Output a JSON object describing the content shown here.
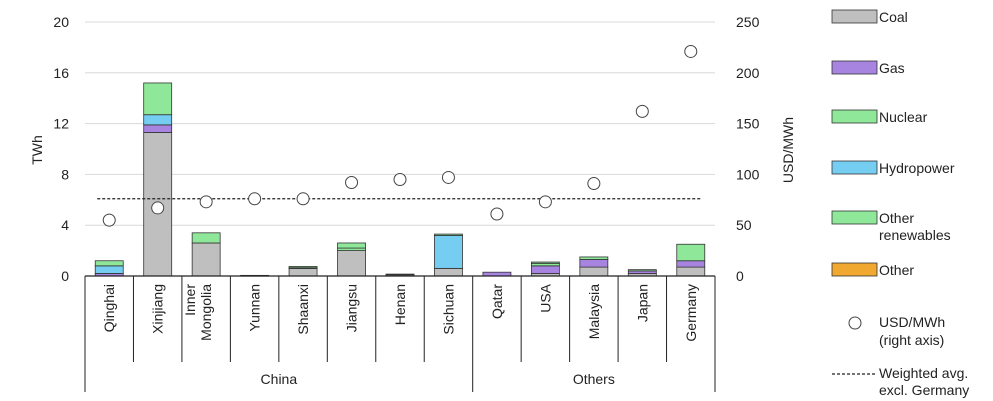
{
  "chart_data": {
    "type": "bar",
    "stacked": true,
    "title": "",
    "ylabel_left": "TWh",
    "ylabel_right": "USD/MWh",
    "ylim_left": [
      0,
      20
    ],
    "yticks_left": [
      "0",
      "4",
      "8",
      "12",
      "16",
      "20"
    ],
    "ylim_right": [
      0,
      250
    ],
    "yticks_right": [
      "0",
      "50",
      "100",
      "150",
      "200",
      "250"
    ],
    "groups": [
      {
        "label": "China",
        "count": 8
      },
      {
        "label": "Others",
        "count": 5
      }
    ],
    "categories": [
      "Qinghai",
      "Xinjiang",
      "Inner Mongolia",
      "Yunnan",
      "Shaanxi",
      "Jiangsu",
      "Henan",
      "Sichuan",
      "Qatar",
      "USA",
      "Malaysia",
      "Japan",
      "Germany"
    ],
    "category_lines": [
      [
        "Qinghai"
      ],
      [
        "Xinjiang"
      ],
      [
        "Inner",
        "Mongolia"
      ],
      [
        "Yunnan"
      ],
      [
        "Shaanxi"
      ],
      [
        "Jiangsu"
      ],
      [
        "Henan"
      ],
      [
        "Sichuan"
      ],
      [
        "Qatar"
      ],
      [
        "USA"
      ],
      [
        "Malaysia"
      ],
      [
        "Japan"
      ],
      [
        "Germany"
      ]
    ],
    "series": [
      {
        "name": "Coal",
        "color": "#bfbfbf",
        "values": [
          0.0,
          11.3,
          2.6,
          0.0,
          0.6,
          2.0,
          0.1,
          0.6,
          0.0,
          0.2,
          0.7,
          0.2,
          0.7
        ]
      },
      {
        "name": "Gas",
        "color": "#a784e0",
        "values": [
          0.2,
          0.6,
          0.0,
          0.05,
          0.0,
          0.0,
          0.0,
          0.0,
          0.3,
          0.6,
          0.6,
          0.2,
          0.5
        ]
      },
      {
        "name": "Nuclear",
        "color": "#8fe89a",
        "values": [
          0.0,
          0.0,
          0.0,
          0.0,
          0.0,
          0.2,
          0.0,
          0.0,
          0.0,
          0.2,
          0.0,
          0.0,
          0.0
        ]
      },
      {
        "name": "Hydropower",
        "color": "#75cdf2",
        "values": [
          0.6,
          0.8,
          0.0,
          0.0,
          0.05,
          0.0,
          0.0,
          2.6,
          0.0,
          0.0,
          0.0,
          0.0,
          0.0
        ]
      },
      {
        "name": "Other renewables",
        "color": "#8fe89a",
        "values": [
          0.4,
          2.5,
          0.8,
          0.0,
          0.1,
          0.4,
          0.05,
          0.1,
          0.0,
          0.1,
          0.2,
          0.1,
          1.3
        ]
      },
      {
        "name": "Other",
        "color": "#f0a830",
        "values": [
          0.0,
          0.0,
          0.0,
          0.0,
          0.0,
          0.0,
          0.0,
          0.0,
          0.0,
          0.0,
          0.0,
          0.0,
          0.0
        ]
      }
    ],
    "legend_lines": [
      [
        "Coal"
      ],
      [
        "Gas"
      ],
      [
        "Nuclear"
      ],
      [
        "Hydropower"
      ],
      [
        "Other",
        "renewables"
      ],
      [
        "Other"
      ]
    ],
    "scatter": {
      "name": "USD/MWh (right axis)",
      "legend_lines": [
        "USD/MWh",
        "(right axis)"
      ],
      "values": [
        55,
        67,
        73,
        76,
        76,
        92,
        95,
        97,
        61,
        73,
        91,
        162,
        221
      ]
    },
    "reference_line": {
      "name": "Weighted avg. excl. Germany",
      "legend_lines": [
        "Weighted avg.",
        "excl. Germany"
      ],
      "value": 76
    },
    "grid": true,
    "legend_position": "right"
  }
}
